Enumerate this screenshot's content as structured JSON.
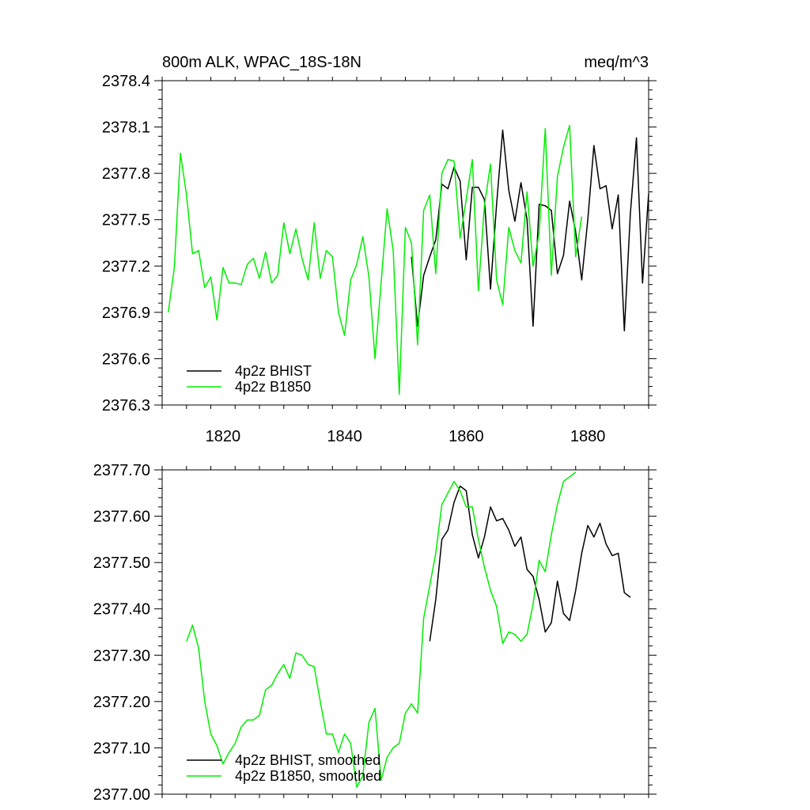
{
  "chart_data": [
    {
      "type": "line",
      "title_left": "800m ALK, WPAC_18S-18N",
      "title_right": "meq/m^3",
      "xlim": [
        1810,
        1890
      ],
      "ylim": [
        2376.3,
        2378.4
      ],
      "y_ticks": [
        2376.3,
        2376.6,
        2376.9,
        2377.2,
        2377.5,
        2377.8,
        2378.1,
        2378.4
      ],
      "y_tick_labels": [
        "2376.3",
        "2376.6",
        "2376.9",
        "2377.2",
        "2377.5",
        "2377.8",
        "2378.1",
        "2378.4"
      ],
      "x_ticks": [
        1820,
        1840,
        1860,
        1880
      ],
      "x_tick_labels": [
        "1820",
        "1840",
        "1860",
        "1880"
      ],
      "legend_position": "bottom-left",
      "series": [
        {
          "name": "4p2z BHIST",
          "color": "#000000",
          "x_start": 1851,
          "values": [
            2377.26,
            2376.81,
            2377.14,
            2377.26,
            2377.37,
            2377.73,
            2377.7,
            2377.84,
            2377.75,
            2377.24,
            2377.71,
            2377.71,
            2377.63,
            2377.05,
            2377.6,
            2378.08,
            2377.69,
            2377.49,
            2377.74,
            2377.5,
            2376.81,
            2377.6,
            2377.59,
            2377.56,
            2377.15,
            2377.27,
            2377.62,
            2377.42,
            2377.11,
            2377.5,
            2377.98,
            2377.7,
            2377.72,
            2377.44,
            2377.66,
            2376.78,
            2377.54,
            2378.03,
            2377.09,
            2377.67
          ]
        },
        {
          "name": "4p2z B1850",
          "color": "#00ee00",
          "x_start": 1811,
          "values": [
            2376.9,
            2377.19,
            2377.93,
            2377.66,
            2377.28,
            2377.3,
            2377.06,
            2377.13,
            2376.85,
            2377.19,
            2377.09,
            2377.09,
            2377.08,
            2377.21,
            2377.25,
            2377.12,
            2377.29,
            2377.09,
            2377.14,
            2377.48,
            2377.28,
            2377.44,
            2377.25,
            2377.11,
            2377.48,
            2377.12,
            2377.3,
            2377.26,
            2376.9,
            2376.75,
            2377.11,
            2377.21,
            2377.39,
            2377.13,
            2376.6,
            2377.09,
            2377.57,
            2377.3,
            2376.37,
            2377.45,
            2377.35,
            2376.69,
            2377.56,
            2377.66,
            2377.15,
            2377.8,
            2377.89,
            2377.88,
            2377.38,
            2377.63,
            2377.89,
            2377.04,
            2377.59,
            2377.86,
            2377.11,
            2376.95,
            2377.45,
            2377.3,
            2377.22,
            2377.68,
            2377.2,
            2377.41,
            2378.09,
            2377.14,
            2377.78,
            2377.97,
            2378.11,
            2377.26,
            2377.52
          ]
        }
      ]
    },
    {
      "type": "line",
      "xlim": [
        1810,
        1890
      ],
      "ylim": [
        2377.0,
        2377.7
      ],
      "y_ticks": [
        2377.0,
        2377.1,
        2377.2,
        2377.3,
        2377.4,
        2377.5,
        2377.6,
        2377.7
      ],
      "y_tick_labels": [
        "2377.00",
        "2377.10",
        "2377.20",
        "2377.30",
        "2377.40",
        "2377.50",
        "2377.60",
        "2377.70"
      ],
      "x_ticks": [
        1820,
        1840,
        1860,
        1880
      ],
      "legend_position": "bottom-left",
      "series": [
        {
          "name": "4p2z BHIST, smoothed",
          "color": "#000000",
          "x_start": 1854,
          "values": [
            2377.33,
            2377.42,
            2377.55,
            2377.57,
            2377.63,
            2377.665,
            2377.655,
            2377.56,
            2377.51,
            2377.555,
            2377.62,
            2377.59,
            2377.595,
            2377.57,
            2377.535,
            2377.555,
            2377.485,
            2377.47,
            2377.42,
            2377.35,
            2377.37,
            2377.46,
            2377.39,
            2377.375,
            2377.44,
            2377.52,
            2377.58,
            2377.555,
            2377.585,
            2377.54,
            2377.515,
            2377.52,
            2377.435,
            2377.425
          ]
        },
        {
          "name": "4p2z B1850, smoothed",
          "color": "#00ee00",
          "x_start": 1814,
          "values": [
            2377.33,
            2377.365,
            2377.315,
            2377.2,
            2377.13,
            2377.105,
            2377.065,
            2377.09,
            2377.11,
            2377.145,
            2377.16,
            2377.16,
            2377.17,
            2377.225,
            2377.235,
            2377.26,
            2377.28,
            2377.25,
            2377.305,
            2377.3,
            2377.28,
            2377.275,
            2377.2,
            2377.13,
            2377.13,
            2377.09,
            2377.13,
            2377.11,
            2377.015,
            2377.04,
            2377.155,
            2377.185,
            2377.03,
            2377.08,
            2377.1,
            2377.11,
            2377.175,
            2377.195,
            2377.175,
            2377.38,
            2377.45,
            2377.52,
            2377.625,
            2377.65,
            2377.675,
            2377.655,
            2377.62,
            2377.62,
            2377.55,
            2377.49,
            2377.44,
            2377.405,
            2377.325,
            2377.35,
            2377.345,
            2377.33,
            2377.345,
            2377.41,
            2377.505,
            2377.48,
            2377.56,
            2377.625,
            2377.675,
            2377.685,
            2377.695
          ]
        }
      ]
    }
  ]
}
